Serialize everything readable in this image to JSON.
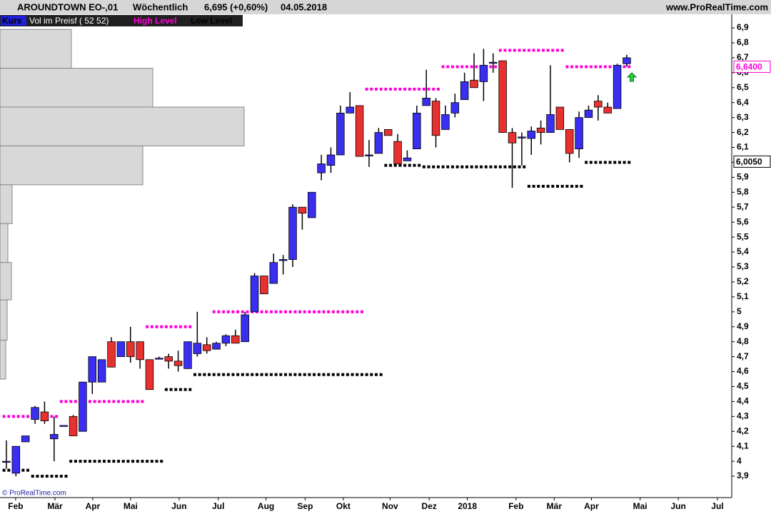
{
  "chart_data": {
    "type": "candlestick",
    "title": "AROUNDTOWN EO-,01",
    "period": "Wöchentlich",
    "last_quote": "6,695 (+0,60%)",
    "date": "04.05.2018",
    "source": "www.ProRealTime.com",
    "copyright": "© ProRealTime.com",
    "series": [
      {
        "name": "Kurs",
        "up_color": "#3a2ff0",
        "down_color": "#e8312f",
        "open": [
          4.0,
          3.92,
          4.13,
          4.28,
          4.33,
          4.15,
          4.24,
          4.3,
          4.2,
          4.53,
          4.53,
          4.8,
          4.7,
          4.8,
          4.8,
          4.68,
          4.69,
          4.7,
          4.67,
          4.62,
          4.72,
          4.78,
          4.75,
          4.79,
          4.84,
          4.8,
          5.0,
          5.24,
          5.19,
          5.35,
          5.35,
          5.7,
          5.63,
          5.93,
          5.98,
          6.05,
          6.33,
          6.38,
          6.05,
          6.06,
          6.22,
          6.14,
          6.01,
          6.09,
          6.38,
          6.41,
          6.22,
          6.33,
          6.42,
          6.55,
          6.54,
          6.67,
          6.68,
          6.2,
          6.17,
          6.16,
          6.23,
          6.2,
          6.37,
          6.22,
          6.09,
          6.3,
          6.41,
          6.37,
          6.36,
          6.66
        ],
        "high": [
          4.14,
          4.1,
          4.17,
          4.37,
          4.4,
          4.3,
          4.24,
          4.31,
          4.53,
          4.7,
          4.68,
          4.83,
          4.8,
          4.9,
          4.8,
          4.68,
          4.7,
          4.72,
          4.74,
          4.8,
          5.0,
          4.83,
          4.8,
          4.85,
          4.88,
          5.0,
          5.26,
          5.24,
          5.39,
          5.38,
          5.72,
          5.7,
          5.8,
          6.05,
          6.1,
          6.38,
          6.47,
          6.38,
          6.15,
          6.23,
          6.22,
          6.19,
          6.08,
          6.38,
          6.62,
          6.43,
          6.38,
          6.46,
          6.6,
          6.73,
          6.76,
          6.73,
          6.68,
          6.23,
          6.2,
          6.24,
          6.28,
          6.65,
          6.37,
          6.22,
          6.34,
          6.38,
          6.45,
          6.4,
          6.66,
          6.72
        ],
        "low": [
          3.95,
          3.9,
          4.13,
          4.25,
          4.25,
          4.0,
          4.24,
          4.17,
          4.2,
          4.45,
          4.53,
          4.63,
          4.7,
          4.66,
          4.62,
          4.48,
          4.69,
          4.62,
          4.6,
          4.62,
          4.7,
          4.72,
          4.75,
          4.77,
          4.79,
          4.8,
          5.0,
          5.12,
          5.19,
          5.25,
          5.3,
          5.55,
          5.63,
          5.88,
          5.93,
          6.05,
          6.33,
          6.04,
          5.97,
          6.06,
          6.18,
          5.99,
          6.01,
          6.09,
          6.38,
          6.1,
          6.22,
          6.3,
          6.42,
          6.5,
          6.41,
          6.6,
          6.2,
          5.83,
          5.98,
          6.05,
          6.12,
          6.2,
          6.22,
          6.0,
          6.03,
          6.3,
          6.28,
          6.33,
          6.36,
          6.64
        ],
        "close": [
          4.0,
          4.1,
          4.17,
          4.36,
          4.27,
          4.18,
          4.24,
          4.17,
          4.53,
          4.7,
          4.68,
          4.63,
          4.8,
          4.7,
          4.68,
          4.48,
          4.69,
          4.67,
          4.64,
          4.8,
          4.79,
          4.74,
          4.79,
          4.84,
          4.79,
          4.98,
          5.24,
          5.12,
          5.33,
          5.35,
          5.7,
          5.66,
          5.8,
          5.99,
          6.05,
          6.33,
          6.37,
          6.04,
          6.05,
          6.2,
          6.18,
          5.99,
          6.03,
          6.33,
          6.43,
          6.18,
          6.32,
          6.4,
          6.54,
          6.5,
          6.65,
          6.67,
          6.2,
          6.13,
          6.17,
          6.21,
          6.2,
          6.32,
          6.22,
          6.06,
          6.3,
          6.35,
          6.37,
          6.33,
          6.65,
          6.7
        ]
      }
    ],
    "volume_profile": {
      "name": "Vol im Preisf ( 52 52)",
      "color": "#d8d8d8",
      "bins": [
        6.89,
        6.63,
        6.37,
        6.11,
        5.85,
        5.59,
        5.33,
        5.08,
        4.81,
        4.55
      ],
      "values": [
        100,
        214,
        342,
        200,
        17,
        11,
        16,
        10,
        8
      ]
    },
    "high_level": {
      "name": "High Level",
      "color": "#ff00d8",
      "values": [
        4.3,
        4.3,
        4.3,
        4.3,
        4.3,
        4.3,
        4.4,
        4.4,
        4.4,
        4.4,
        4.4,
        4.4,
        4.4,
        4.4,
        4.4,
        4.9,
        4.9,
        4.9,
        4.9,
        4.9,
        null,
        null,
        5.0,
        5.0,
        5.0,
        5.0,
        5.0,
        5.0,
        5.0,
        5.0,
        5.0,
        5.0,
        5.0,
        5.0,
        5.0,
        5.0,
        5.0,
        5.0,
        6.49,
        6.49,
        6.49,
        6.49,
        6.49,
        6.49,
        6.49,
        6.49,
        6.64,
        6.64,
        6.64,
        6.64,
        6.64,
        6.64,
        6.75,
        6.75,
        6.75,
        6.75,
        6.75,
        6.75,
        6.75,
        6.64,
        6.64,
        6.64,
        6.64,
        6.64,
        6.64,
        6.64
      ]
    },
    "low_level": {
      "name": "Low Level",
      "color": "#000000",
      "values": [
        3.94,
        3.94,
        3.94,
        3.9,
        3.9,
        3.9,
        3.9,
        4.0,
        4.0,
        4.0,
        4.0,
        4.0,
        4.0,
        4.0,
        4.0,
        4.0,
        4.0,
        4.48,
        4.48,
        4.48,
        4.58,
        4.58,
        4.58,
        4.58,
        4.58,
        4.58,
        4.58,
        4.58,
        4.58,
        4.58,
        4.58,
        4.58,
        4.58,
        4.58,
        4.58,
        4.58,
        4.58,
        4.58,
        4.58,
        4.58,
        5.98,
        5.98,
        5.98,
        5.98,
        5.97,
        5.97,
        5.97,
        5.97,
        5.97,
        5.97,
        5.97,
        5.97,
        5.97,
        5.97,
        5.97,
        5.84,
        5.84,
        5.84,
        5.84,
        5.84,
        5.84,
        6.0,
        6.0,
        6.0,
        6.0,
        6.0
      ]
    },
    "price_markers": [
      {
        "value": 6.64,
        "label": "6,6400",
        "color": "#ff00d8"
      },
      {
        "value": 6.005,
        "label": "6,0050",
        "color": "#000000"
      }
    ],
    "ylim": [
      3.757,
      6.991
    ],
    "yticks": [
      {
        "value": 3.9,
        "label": "3,9"
      },
      4,
      {
        "value": 4.1,
        "label": "4,1"
      },
      {
        "value": 4.2,
        "label": "4,2"
      },
      {
        "value": 4.3,
        "label": "4,3"
      },
      {
        "value": 4.4,
        "label": "4,4"
      },
      {
        "value": 4.5,
        "label": "4,5"
      },
      {
        "value": 4.6,
        "label": "4,6"
      },
      {
        "value": 4.7,
        "label": "4,7"
      },
      {
        "value": 4.8,
        "label": "4,8"
      },
      {
        "value": 4.9,
        "label": "4,9"
      },
      5,
      {
        "value": 5.1,
        "label": "5,1"
      },
      {
        "value": 5.2,
        "label": "5,2"
      },
      {
        "value": 5.3,
        "label": "5,3"
      },
      {
        "value": 5.4,
        "label": "5,4"
      },
      {
        "value": 5.5,
        "label": "5,5"
      },
      {
        "value": 5.6,
        "label": "5,6"
      },
      {
        "value": 5.7,
        "label": "5,7"
      },
      {
        "value": 5.8,
        "label": "5,8"
      },
      {
        "value": 5.9,
        "label": "5,9"
      },
      6,
      {
        "value": 6.1,
        "label": "6,1"
      },
      {
        "value": 6.2,
        "label": "6,2"
      },
      {
        "value": 6.3,
        "label": "6,3"
      },
      {
        "value": 6.4,
        "label": "6,4"
      },
      {
        "value": 6.5,
        "label": "6,5"
      },
      {
        "value": 6.6,
        "label": "6,6"
      },
      {
        "value": 6.7,
        "label": "6,7"
      },
      {
        "value": 6.8,
        "label": "6,8"
      },
      {
        "value": 6.9,
        "label": "6,9"
      }
    ],
    "xlim": [
      -0.67,
      76
    ],
    "xticks": [
      {
        "value": 0.97,
        "label": "Feb"
      },
      {
        "value": 5.09,
        "label": "Mär"
      },
      {
        "value": 9.05,
        "label": "Apr"
      },
      {
        "value": 13.01,
        "label": "Mai"
      },
      {
        "value": 18.1,
        "label": "Jun"
      },
      {
        "value": 22.2,
        "label": "Jul"
      },
      {
        "value": 27.2,
        "label": "Aug"
      },
      {
        "value": 31.3,
        "label": "Sep"
      },
      {
        "value": 35.3,
        "label": "Okt"
      },
      {
        "value": 40.2,
        "label": "Nov"
      },
      {
        "value": 44.3,
        "label": "Dez"
      },
      {
        "value": 48.3,
        "label": "2018"
      },
      {
        "value": 53.4,
        "label": "Feb"
      },
      {
        "value": 57.4,
        "label": "Mär"
      },
      {
        "value": 61.3,
        "label": "Apr"
      },
      {
        "value": 66.4,
        "label": "Mai"
      },
      {
        "value": 70.4,
        "label": "Jun"
      },
      {
        "value": 74.5,
        "label": "Jul"
      }
    ]
  }
}
